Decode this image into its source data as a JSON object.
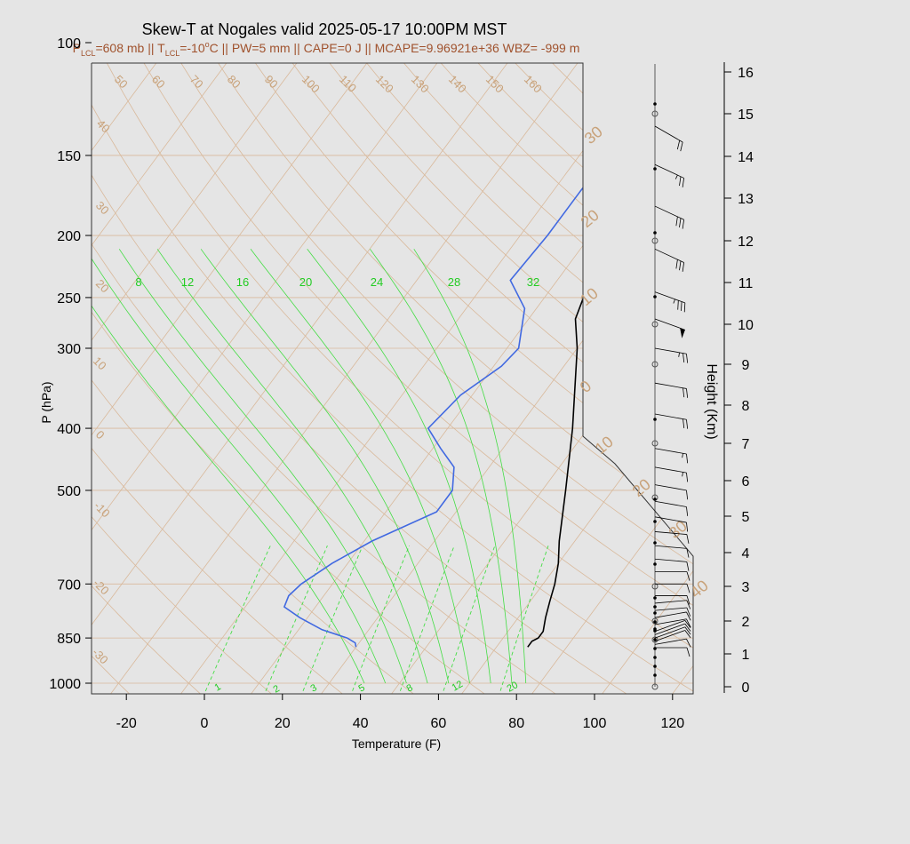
{
  "chart_data": {
    "type": "line",
    "title": "Skew-T at Nogales valid 2025-05-17 10:00PM MST",
    "subtitle": {
      "plcl_pre": "P",
      "plcl_sub": "LCL",
      "plcl_val": "=608 mb || ",
      "tlcl_pre": "T",
      "tlcl_sub": "LCL",
      "tlcl_val": "=-10",
      "tlcl_sup": "o",
      "tlcl_unit": "C || PW=5 mm || CAPE=0 J || MCAPE=9.96921e+36 WBZ= -999 m"
    },
    "xlabel": "Temperature (F)",
    "ylabel": "P (hPa)",
    "y2label": "Height (Km)",
    "xlim": [
      -29,
      125
    ],
    "ylim": [
      1050,
      100
    ],
    "x_ticks": [
      "-20",
      "0",
      "20",
      "40",
      "60",
      "80",
      "100",
      "120"
    ],
    "y_ticks": [
      "100",
      "150",
      "200",
      "250",
      "300",
      "400",
      "500",
      "700",
      "850",
      "1000"
    ],
    "height_ticks": [
      "0",
      "1",
      "2",
      "3",
      "4",
      "5",
      "6",
      "7",
      "8",
      "9",
      "10",
      "11",
      "12",
      "13",
      "14",
      "15",
      "16"
    ],
    "isotherm_labels": [
      "-30",
      "-20",
      "-10",
      "0",
      "10",
      "20",
      "30",
      "40"
    ],
    "isotherm_right_labels": [
      "30",
      "20",
      "10",
      "0",
      "10",
      "20",
      "30",
      "40"
    ],
    "theta_labels": [
      "50",
      "60",
      "70",
      "80",
      "90",
      "100",
      "110",
      "120",
      "130",
      "140",
      "150",
      "160"
    ],
    "theta_left_labels": [
      "40",
      "30",
      "20",
      "10",
      "0",
      "-10",
      "-20",
      "-30"
    ],
    "theta_e_labels": [
      "8",
      "12",
      "16",
      "20",
      "24",
      "28",
      "32"
    ],
    "mixing_ratio_labels": [
      "1",
      "2",
      "3",
      "5",
      "8",
      "12",
      "20"
    ],
    "series": [
      {
        "name": "",
        "color": "#000000",
        "p": [
          878,
          860,
          850,
          830,
          790,
          745,
          700,
          650,
          600,
          500,
          400,
          300,
          270,
          250,
          230,
          200,
          170,
          140,
          120,
          100
        ],
        "t": [
          76,
          76,
          77,
          77,
          75,
          73,
          71,
          68,
          64,
          56,
          46,
          32,
          26,
          24,
          23,
          23,
          27,
          37,
          45,
          55
        ]
      },
      {
        "name": "",
        "color": "#4169e1",
        "p": [
          878,
          865,
          850,
          825,
          790,
          760,
          730,
          700,
          650,
          600,
          540,
          500,
          460,
          430,
          400,
          355,
          320,
          300,
          260,
          235,
          200,
          170,
          135,
          100
        ],
        "t": [
          32,
          31,
          28,
          20,
          12,
          6,
          5,
          6,
          10,
          16,
          27,
          27,
          23,
          16,
          9,
          11,
          16,
          17,
          11,
          2,
          3,
          3,
          4,
          15
        ]
      }
    ],
    "wind_barbs": [
      {
        "p": 880,
        "dir": 270,
        "kt": 10
      },
      {
        "p": 870,
        "dir": 260,
        "kt": 10
      },
      {
        "p": 860,
        "dir": 250,
        "kt": 10
      },
      {
        "p": 850,
        "dir": 250,
        "kt": 10
      },
      {
        "p": 840,
        "dir": 250,
        "kt": 10
      },
      {
        "p": 830,
        "dir": 250,
        "kt": 10
      },
      {
        "p": 810,
        "dir": 260,
        "kt": 10
      },
      {
        "p": 790,
        "dir": 260,
        "kt": 10
      },
      {
        "p": 770,
        "dir": 265,
        "kt": 10
      },
      {
        "p": 750,
        "dir": 265,
        "kt": 10
      },
      {
        "p": 730,
        "dir": 270,
        "kt": 10
      },
      {
        "p": 700,
        "dir": 270,
        "kt": 10
      },
      {
        "p": 670,
        "dir": 270,
        "kt": 10
      },
      {
        "p": 640,
        "dir": 275,
        "kt": 10
      },
      {
        "p": 610,
        "dir": 275,
        "kt": 10
      },
      {
        "p": 580,
        "dir": 275,
        "kt": 10
      },
      {
        "p": 550,
        "dir": 280,
        "kt": 10
      },
      {
        "p": 520,
        "dir": 280,
        "kt": 10
      },
      {
        "p": 490,
        "dir": 280,
        "kt": 10
      },
      {
        "p": 460,
        "dir": 280,
        "kt": 15
      },
      {
        "p": 430,
        "dir": 280,
        "kt": 15
      },
      {
        "p": 380,
        "dir": 280,
        "kt": 20
      },
      {
        "p": 340,
        "dir": 280,
        "kt": 20
      },
      {
        "p": 300,
        "dir": 280,
        "kt": 25
      },
      {
        "p": 270,
        "dir": 290,
        "kt": 50
      },
      {
        "p": 245,
        "dir": 290,
        "kt": 35
      },
      {
        "p": 210,
        "dir": 295,
        "kt": 30
      },
      {
        "p": 180,
        "dir": 295,
        "kt": 30
      },
      {
        "p": 155,
        "dir": 295,
        "kt": 25
      },
      {
        "p": 135,
        "dir": 300,
        "kt": 20
      }
    ],
    "grid": true,
    "legend": "none"
  },
  "colors": {
    "background": "#e5e5e5",
    "plot_bg": "#e5e5e5",
    "grid": "#d9b99b",
    "label_brown": "#c8a27a",
    "subtitle": "#a0522d",
    "green": "#22cc22",
    "temp": "#000000",
    "dew": "#4169e1"
  }
}
